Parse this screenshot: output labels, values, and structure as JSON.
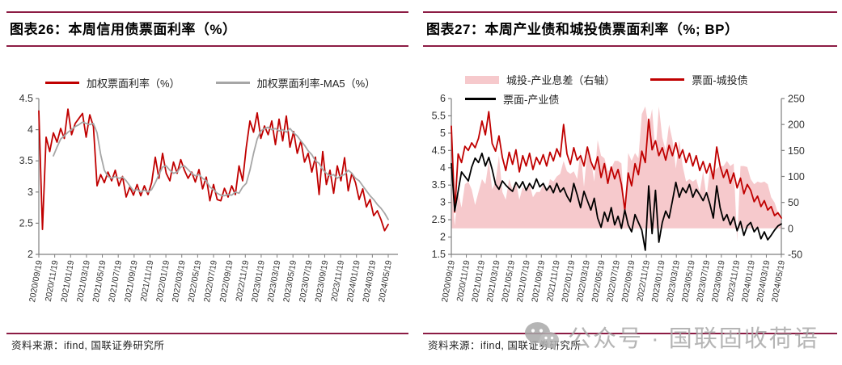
{
  "page": {
    "accent_color": "#8C1C44",
    "background": "#ffffff"
  },
  "left_panel": {
    "title": "图表26：本周信用债票面利率（%）",
    "source": "资料来源：ifind, 国联证券研究所",
    "legend": [
      {
        "label": "加权票面利率（%）",
        "color": "#C00000",
        "type": "line"
      },
      {
        "label": "加权票面利率-MA5（%）",
        "color": "#A6A6A6",
        "type": "line"
      }
    ]
  },
  "right_panel": {
    "title": "图表27：本周产业债和城投债票面利率（%; BP）",
    "source": "资料来源：ifind, 国联证券研究所",
    "legend": [
      {
        "label": "城投-产业息差（右轴）",
        "color": "#F6C9CC",
        "type": "area"
      },
      {
        "label": "票面-城投债",
        "color": "#C00000",
        "type": "line"
      },
      {
        "label": "票面-产业债",
        "color": "#000000",
        "type": "line"
      }
    ]
  },
  "watermark": {
    "icon": "wechat-icon",
    "text": "公众号 · 国联固收荷语"
  },
  "chart_data": [
    {
      "type": "line",
      "title": "图表26：本周信用债票面利率（%）",
      "grid": false,
      "legend_position": "top",
      "x_tick_labels": [
        "2020/09/19",
        "2020/11/19",
        "2021/01/19",
        "2021/03/19",
        "2021/05/19",
        "2021/07/19",
        "2021/09/19",
        "2021/11/19",
        "2022/01/19",
        "2022/03/19",
        "2022/05/19",
        "2022/07/19",
        "2022/09/19",
        "2022/11/19",
        "2023/01/19",
        "2023/03/19",
        "2023/05/19",
        "2023/07/19",
        "2023/09/19",
        "2023/11/19",
        "2024/01/19",
        "2024/03/19",
        "2024/05/19"
      ],
      "left_axis": {
        "lim": [
          2,
          4.5
        ],
        "ticks": [
          2,
          2.5,
          3,
          3.5,
          4,
          4.5
        ],
        "labels": [
          "2",
          "2.5",
          "3",
          "3.5",
          "4",
          "4.5"
        ]
      },
      "series": [
        {
          "name": "加权票面利率（%）",
          "type": "line",
          "axis": "left",
          "color": "#C00000",
          "values": [
            4.3,
            2.4,
            3.88,
            3.65,
            3.95,
            3.8,
            4.02,
            3.86,
            4.33,
            3.92,
            4.1,
            4.18,
            4.26,
            3.88,
            4.24,
            4.05,
            3.1,
            3.28,
            3.15,
            3.32,
            3.18,
            3.35,
            3.1,
            3.25,
            2.92,
            3.08,
            2.95,
            3.12,
            2.94,
            3.1,
            2.96,
            3.15,
            3.56,
            3.22,
            3.62,
            3.3,
            3.18,
            3.48,
            3.3,
            3.52,
            3.35,
            3.22,
            3.32,
            3.16,
            3.36,
            3.05,
            3.24,
            2.86,
            3.12,
            2.88,
            2.86,
            3.06,
            2.92,
            3.1,
            2.96,
            3.42,
            3.18,
            3.72,
            4.14,
            3.96,
            4.27,
            3.86,
            4.06,
            3.92,
            4.14,
            3.76,
            4.17,
            3.82,
            4.22,
            3.72,
            3.97,
            3.62,
            3.82,
            3.48,
            3.62,
            3.32,
            3.56,
            2.96,
            3.65,
            3.12,
            3.35,
            2.98,
            3.42,
            3.18,
            3.55,
            3.02,
            3.3,
            3.15,
            2.88,
            3.05,
            2.76,
            2.88,
            2.62,
            2.7,
            2.56,
            2.38,
            2.48
          ]
        },
        {
          "name": "加权票面利率-MA5（%）",
          "type": "line",
          "axis": "left",
          "color": "#A6A6A6",
          "values": [
            null,
            null,
            null,
            null,
            3.58,
            3.72,
            3.85,
            3.9,
            3.96,
            4.0,
            4.05,
            4.08,
            4.12,
            4.1,
            4.08,
            4.1,
            3.95,
            3.6,
            3.35,
            3.25,
            3.22,
            3.25,
            3.22,
            3.24,
            3.18,
            3.1,
            3.02,
            3.04,
            3.0,
            3.03,
            3.0,
            3.04,
            3.15,
            3.28,
            3.4,
            3.42,
            3.35,
            3.3,
            3.32,
            3.4,
            3.42,
            3.36,
            3.3,
            3.26,
            3.28,
            3.22,
            3.18,
            3.08,
            3.04,
            2.98,
            2.95,
            2.94,
            2.96,
            2.95,
            3.0,
            2.98,
            3.08,
            3.14,
            3.35,
            3.62,
            3.85,
            3.98,
            4.02,
            4.04,
            4.0,
            4.02,
            3.98,
            4.0,
            3.96,
            4.02,
            3.95,
            3.9,
            3.82,
            3.75,
            3.66,
            3.6,
            3.5,
            3.46,
            3.36,
            3.3,
            3.26,
            3.28,
            3.22,
            3.26,
            3.28,
            3.35,
            3.3,
            3.22,
            3.18,
            3.1,
            3.02,
            2.94,
            2.88,
            2.8,
            2.74,
            2.66,
            2.56
          ]
        }
      ]
    },
    {
      "type": "line-area-combo",
      "title": "图表27：本周产业债和城投债票面利率（%; BP）",
      "grid": false,
      "legend_position": "top",
      "x_tick_labels": [
        "2020/09/19",
        "2020/11/19",
        "2021/01/19",
        "2021/03/19",
        "2021/05/19",
        "2021/07/19",
        "2021/09/19",
        "2021/11/19",
        "2022/01/19",
        "2022/03/19",
        "2022/05/19",
        "2022/07/19",
        "2022/09/19",
        "2022/11/19",
        "2023/01/19",
        "2023/03/19",
        "2023/05/19",
        "2023/07/19",
        "2023/09/19",
        "2023/11/19",
        "2024/01/19",
        "2024/03/19",
        "2024/05/19"
      ],
      "left_axis": {
        "lim": [
          1.5,
          6
        ],
        "ticks": [
          1.5,
          2,
          2.5,
          3,
          3.5,
          4,
          4.5,
          5,
          5.5,
          6
        ],
        "labels": [
          "1.5",
          "2",
          "2.5",
          "3",
          "3.5",
          "4",
          "4.5",
          "5",
          "5.5",
          "6"
        ]
      },
      "right_axis": {
        "lim": [
          -50,
          250
        ],
        "ticks": [
          -50,
          0,
          50,
          100,
          150,
          200,
          250
        ],
        "labels": [
          "-50",
          "0",
          "50",
          "100",
          "150",
          "200",
          "250"
        ]
      },
      "series": [
        {
          "name": "城投-产业息差（右轴）",
          "type": "area",
          "axis": "right",
          "color": "#F6C9CC",
          "baseline": 0,
          "values": [
            95,
            5,
            70,
            40,
            85,
            90,
            75,
            45,
            70,
            95,
            85,
            130,
            75,
            90,
            140,
            70,
            55,
            95,
            75,
            90,
            55,
            80,
            70,
            85,
            60,
            70,
            70,
            85,
            70,
            95,
            90,
            100,
            105,
            130,
            110,
            105,
            110,
            95,
            150,
            80,
            150,
            135,
            90,
            170,
            140,
            135,
            110,
            115,
            130,
            130,
            125,
            25,
            145,
            130,
            145,
            135,
            220,
            235,
            195,
            230,
            145,
            235,
            175,
            150,
            200,
            170,
            115,
            170,
            120,
            90,
            95,
            90,
            95,
            70,
            110,
            60,
            115,
            110,
            115,
            120,
            120,
            130,
            120,
            125,
            -25,
            120,
            120,
            118,
            95,
            85,
            90,
            88,
            90,
            85,
            60,
            50,
            30,
            10
          ]
        },
        {
          "name": "票面-城投债",
          "type": "line",
          "axis": "left",
          "color": "#C00000",
          "values": [
            5.2,
            2.72,
            4.4,
            4.15,
            4.62,
            4.5,
            4.72,
            4.58,
            4.85,
            5.35,
            4.95,
            5.62,
            4.7,
            4.48,
            4.92,
            4.3,
            3.92,
            4.45,
            4.1,
            4.52,
            3.88,
            4.35,
            4.05,
            4.42,
            3.95,
            4.3,
            4.1,
            4.38,
            4.05,
            4.45,
            4.2,
            4.55,
            4.32,
            5.25,
            4.4,
            4.1,
            4.58,
            4.22,
            4.35,
            4.05,
            4.6,
            4.18,
            3.95,
            4.32,
            3.72,
            4.12,
            3.55,
            4.02,
            3.68,
            3.95,
            3.52,
            2.78,
            3.85,
            3.48,
            4.12,
            3.8,
            4.48,
            4.15,
            5.4,
            4.52,
            4.78,
            4.35,
            4.58,
            4.22,
            4.65,
            4.35,
            4.72,
            4.28,
            4.52,
            4.15,
            4.42,
            4.05,
            4.35,
            3.92,
            4.18,
            3.85,
            4.12,
            3.68,
            4.6,
            4.05,
            3.72,
            3.95,
            3.55,
            3.85,
            3.42,
            3.7,
            3.25,
            3.52,
            3.35,
            3.02,
            3.18,
            2.88,
            3.05,
            2.78,
            2.88,
            2.62,
            2.7,
            2.55
          ]
        },
        {
          "name": "票面-产业债",
          "type": "line",
          "axis": "left",
          "color": "#000000",
          "values": [
            4.12,
            2.75,
            3.32,
            3.88,
            3.75,
            3.62,
            4.02,
            4.28,
            4.15,
            4.42,
            4.05,
            4.3,
            3.95,
            3.52,
            3.38,
            3.62,
            3.5,
            3.4,
            3.32,
            3.58,
            3.42,
            3.6,
            3.35,
            3.55,
            3.4,
            3.68,
            3.45,
            3.55,
            3.35,
            3.48,
            3.28,
            3.55,
            3.3,
            3.42,
            3.18,
            3.02,
            3.55,
            3.22,
            2.85,
            3.32,
            3.05,
            2.78,
            3.12,
            2.55,
            2.28,
            2.72,
            2.45,
            2.85,
            2.35,
            2.6,
            2.25,
            2.78,
            2.35,
            2.15,
            2.65,
            2.42,
            2.2,
            1.62,
            3.48,
            2.1,
            3.35,
            1.85,
            2.42,
            2.75,
            2.55,
            3.05,
            3.58,
            3.15,
            3.42,
            3.28,
            3.52,
            3.15,
            3.38,
            3.22,
            3.05,
            3.28,
            2.95,
            2.55,
            3.48,
            2.85,
            2.48,
            2.65,
            2.35,
            2.58,
            2.18,
            2.45,
            2.05,
            2.32,
            2.42,
            2.15,
            2.28,
            1.95,
            2.15,
            1.92,
            2.05,
            2.2,
            2.32,
            2.38
          ]
        }
      ]
    }
  ]
}
